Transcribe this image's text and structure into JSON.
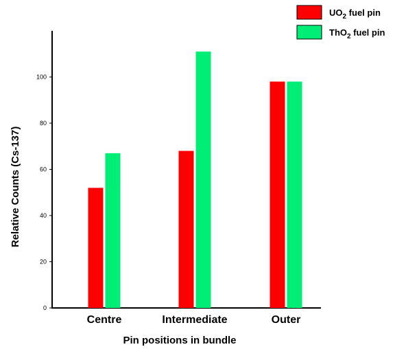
{
  "chart_data": {
    "type": "bar",
    "categories": [
      "Centre",
      "Intermediate",
      "Outer"
    ],
    "series": [
      {
        "name_main": "UO",
        "name_sub": "2",
        "name_rest": " fuel pin",
        "color": "#ff0000",
        "values": [
          52,
          68,
          98
        ]
      },
      {
        "name_main": "ThO",
        "name_sub": "2",
        "name_rest": " fuel pin",
        "color": "#00ee76",
        "values": [
          67,
          111,
          98
        ]
      }
    ],
    "xlabel": "Pin positions in bundle",
    "ylabel": "Relative Counts (Cs-137)",
    "ylim": [
      0,
      120
    ],
    "yticks": [
      0,
      20,
      40,
      60,
      80,
      100
    ],
    "ytick_labels": [
      "0",
      "20",
      "40",
      "60",
      "80",
      "100"
    ],
    "grid": false,
    "legend": "top-right"
  }
}
